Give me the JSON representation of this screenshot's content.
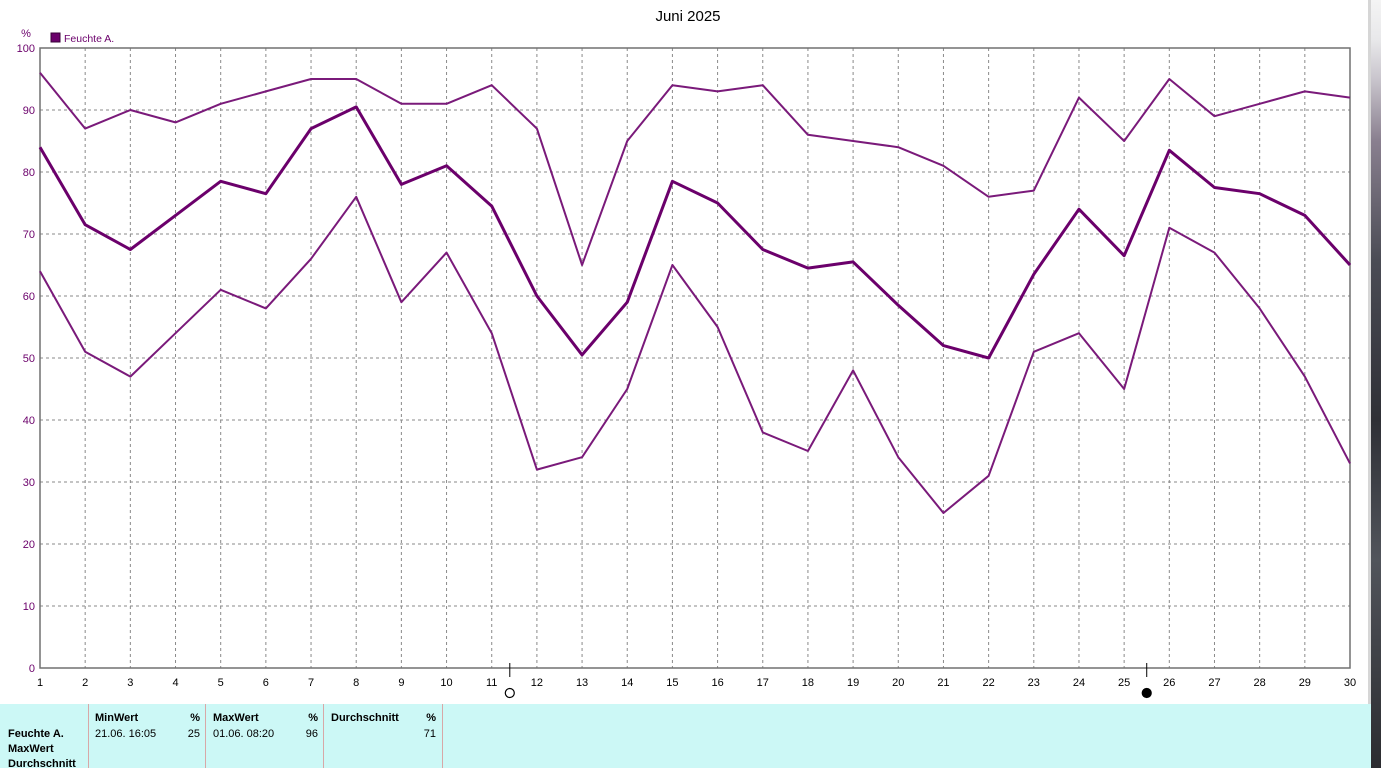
{
  "chart_data": {
    "type": "line",
    "title": "Juni 2025",
    "ylabel": "%",
    "ylim": [
      0,
      100
    ],
    "yticks": [
      0,
      10,
      20,
      30,
      40,
      50,
      60,
      70,
      80,
      90,
      100
    ],
    "x": [
      1,
      2,
      3,
      4,
      5,
      6,
      7,
      8,
      9,
      10,
      11,
      12,
      13,
      14,
      15,
      16,
      17,
      18,
      19,
      20,
      21,
      22,
      23,
      24,
      25,
      26,
      27,
      28,
      29,
      30
    ],
    "legend": [
      {
        "name": "Feuchte A.",
        "color": "#6b006b"
      }
    ],
    "legend_position": "top-left",
    "grid": true,
    "moon_markers": [
      {
        "x": 11.4,
        "phase": "full-moon"
      },
      {
        "x": 25.5,
        "phase": "new-moon"
      }
    ],
    "series": [
      {
        "role": "max",
        "color": "#7a1a7a",
        "values": [
          96,
          87,
          90,
          88,
          91,
          93,
          95,
          95,
          91,
          91,
          94,
          87,
          65,
          85,
          94,
          93,
          94,
          86,
          85,
          84,
          81,
          76,
          77,
          92,
          85,
          95,
          89,
          91,
          93,
          92
        ]
      },
      {
        "role": "avg",
        "color": "#6b006b",
        "values": [
          84,
          71.5,
          67.5,
          73,
          78.5,
          76.5,
          87,
          90.5,
          78,
          81,
          74.5,
          60,
          50.5,
          59,
          78.5,
          75,
          67.5,
          64.5,
          65.5,
          58.5,
          52,
          50,
          63.5,
          74,
          66.5,
          83.5,
          77.5,
          76.5,
          73,
          65
        ]
      },
      {
        "role": "min",
        "color": "#7a1a7a",
        "values": [
          64,
          51,
          47,
          54,
          61,
          58,
          66,
          76,
          59,
          67,
          54,
          32,
          34,
          45,
          65,
          55,
          38,
          35,
          48,
          34,
          25,
          31,
          51,
          54,
          45,
          71,
          67,
          58,
          47,
          33
        ]
      }
    ]
  },
  "stats": {
    "row_labels": [
      "Feuchte A.",
      "MaxWert",
      "Durchschnitt"
    ],
    "min": {
      "header": "MinWert",
      "unit": "%",
      "date": "21.06.  16:05",
      "value": "25"
    },
    "max": {
      "header": "MaxWert",
      "unit": "%",
      "date": "01.06.  08:20",
      "value": "96"
    },
    "avg": {
      "header": "Durchschnitt",
      "unit": "%",
      "value": "71"
    }
  }
}
